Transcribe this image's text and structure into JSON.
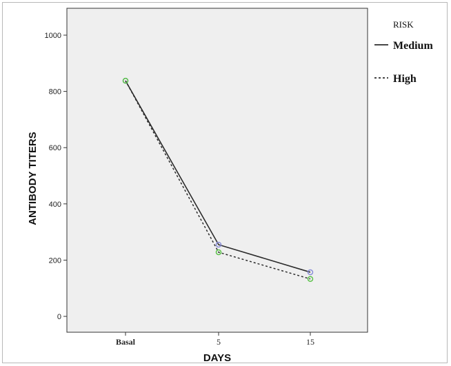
{
  "chart_data": {
    "type": "line",
    "categories": [
      "Basal",
      "5",
      "15"
    ],
    "series": [
      {
        "name": "Medium",
        "values": [
          838,
          255,
          157
        ],
        "line_style": "solid",
        "marker_color": "#8a8ed8"
      },
      {
        "name": "High",
        "values": [
          838,
          228,
          133
        ],
        "line_style": "dotted",
        "marker_color": "#5cc24a"
      }
    ],
    "xlabel": "DAYS",
    "ylabel": "ANTIBODY TITERS",
    "ylim": [
      0,
      1000
    ],
    "yticks": [
      0,
      200,
      400,
      600,
      800,
      1000
    ],
    "legend_title": "RISK",
    "legend_position": "right",
    "grid": false,
    "plot_background": "#efefef",
    "line_color": "#2b2b2b"
  }
}
